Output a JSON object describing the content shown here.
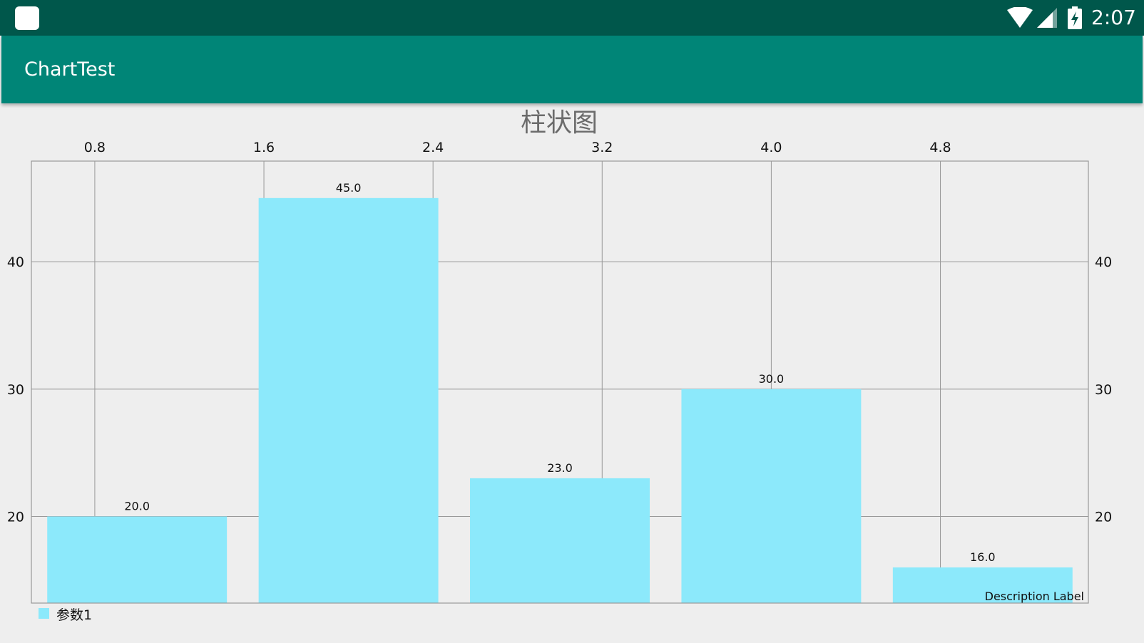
{
  "status_bar": {
    "time": "2:07",
    "icons": [
      "app-icon",
      "wifi-icon",
      "signal-icon",
      "battery-charging-icon"
    ]
  },
  "app_bar": {
    "title": "ChartTest"
  },
  "colors": {
    "status_bar": "#00574b",
    "app_bar": "#008577",
    "background": "#eeeeee",
    "bar": "#8ce9fb",
    "grid": "#999999",
    "title": "#6b6b6b",
    "text": "#111111"
  },
  "chart_data": {
    "type": "bar",
    "title": "柱状图",
    "description": "Description Label",
    "x": [
      1,
      2,
      3,
      4,
      5
    ],
    "series": [
      {
        "name": "参数1",
        "color": "#8ce9fb",
        "values": [
          20.0,
          45.0,
          23.0,
          30.0,
          16.0
        ],
        "labels": [
          "20.0",
          "45.0",
          "23.0",
          "30.0",
          "16.0"
        ]
      }
    ],
    "xaxis": {
      "position": "top",
      "ticks": [
        0.8,
        1.6,
        2.4,
        3.2,
        4.0,
        4.8
      ],
      "tick_labels": [
        "0.8",
        "1.6",
        "2.4",
        "3.2",
        "4.0",
        "4.8"
      ],
      "range": [
        0.5,
        5.5
      ]
    },
    "yaxis_left": {
      "ticks": [
        20,
        30,
        40
      ],
      "tick_labels": [
        "20",
        "30",
        "40"
      ],
      "range": [
        13.2,
        47.9
      ]
    },
    "yaxis_right": {
      "ticks": [
        20,
        30,
        40
      ],
      "tick_labels": [
        "20",
        "30",
        "40"
      ],
      "range": [
        13.2,
        47.9
      ]
    },
    "grid": true,
    "legend": {
      "position": "bottom-left",
      "entries": [
        "参数1"
      ]
    }
  }
}
